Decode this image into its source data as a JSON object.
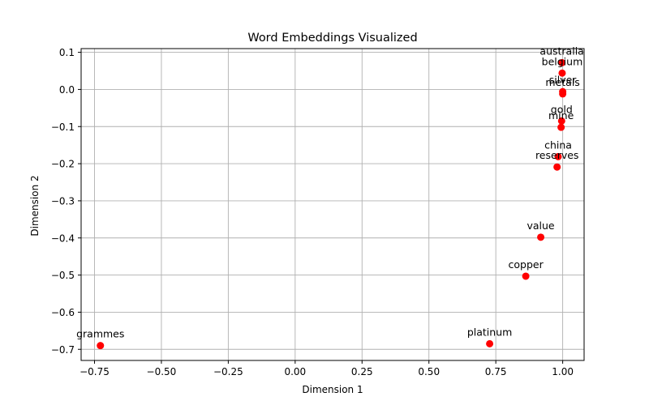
{
  "chart_data": {
    "type": "scatter",
    "title": "Word Embeddings Visualized",
    "xlabel": "Dimension 1",
    "ylabel": "Dimension 2",
    "xlim": [
      -0.8,
      1.08
    ],
    "ylim": [
      -0.73,
      0.11
    ],
    "xticks": [
      -0.75,
      -0.5,
      -0.25,
      0.0,
      0.25,
      0.5,
      0.75,
      1.0
    ],
    "xtick_labels": [
      "−0.75",
      "−0.50",
      "−0.25",
      "0.00",
      "0.25",
      "0.50",
      "0.75",
      "1.00"
    ],
    "yticks": [
      0.1,
      0.0,
      -0.1,
      -0.2,
      -0.3,
      -0.4,
      -0.5,
      -0.6,
      -0.7
    ],
    "ytick_labels": [
      "0.1",
      "0.0",
      "−0.1",
      "−0.2",
      "−0.3",
      "−0.4",
      "−0.5",
      "−0.6",
      "−0.7"
    ],
    "grid": true,
    "marker_color": "#ff0000",
    "points": [
      {
        "label": "australia",
        "x": 0.997,
        "y": 0.072
      },
      {
        "label": "belgium",
        "x": 0.998,
        "y": 0.044
      },
      {
        "label": "silver",
        "x": 1.0,
        "y": -0.006
      },
      {
        "label": "metals",
        "x": 1.0,
        "y": -0.012
      },
      {
        "label": "gold",
        "x": 0.996,
        "y": -0.085
      },
      {
        "label": "mine",
        "x": 0.994,
        "y": -0.102
      },
      {
        "label": "china",
        "x": 0.983,
        "y": -0.181
      },
      {
        "label": "reserves",
        "x": 0.979,
        "y": -0.209
      },
      {
        "label": "value",
        "x": 0.918,
        "y": -0.398
      },
      {
        "label": "copper",
        "x": 0.862,
        "y": -0.503
      },
      {
        "label": "platinum",
        "x": 0.727,
        "y": -0.685
      },
      {
        "label": "grammes",
        "x": -0.728,
        "y": -0.69
      }
    ]
  }
}
